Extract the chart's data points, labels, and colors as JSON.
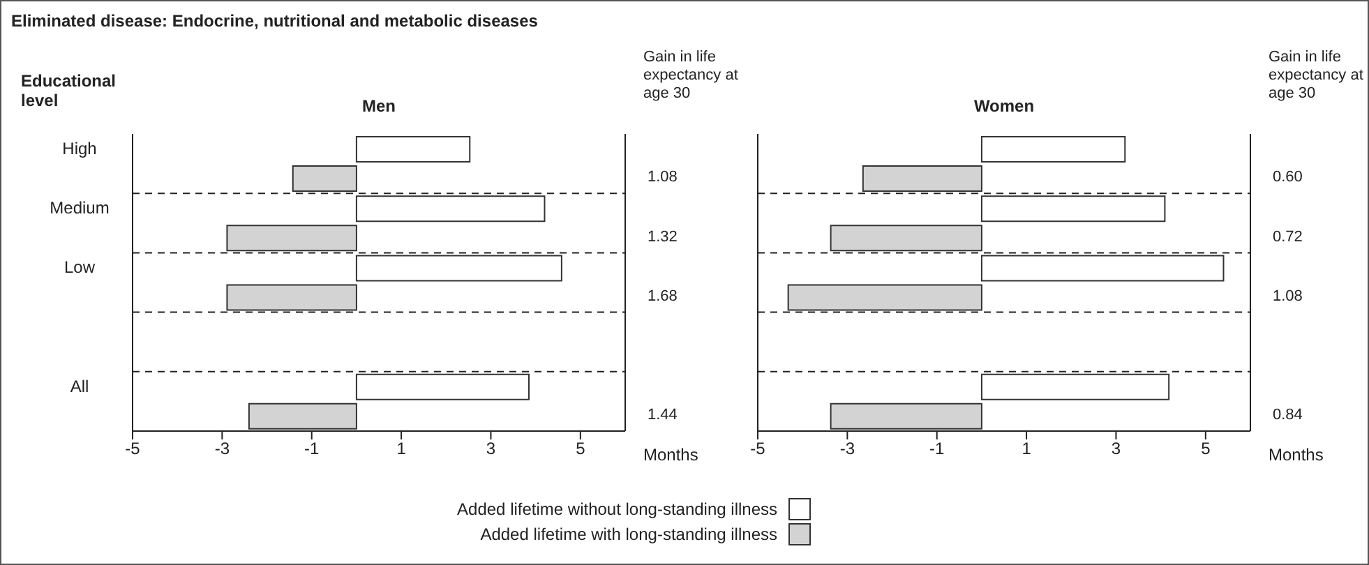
{
  "chart_data": [
    {
      "type": "bar",
      "orientation": "horizontal",
      "title": "Men",
      "xlabel": "Months",
      "ylabel": "Educational level",
      "y2label": "Gain in life expectancy at age 30",
      "annotations": [
        "Eliminated disease: Endocrine, nutritional and metabolic diseases"
      ],
      "categories": [
        "High",
        "Medium",
        "Low",
        null,
        "All"
      ],
      "y2_categories": [
        "1.08",
        "1.32",
        "1.68",
        null,
        "1.44"
      ],
      "series": [
        {
          "name": "Added lifetime without long-standing illness",
          "color": "#ffffff",
          "values": [
            2.53,
            4.2,
            4.58,
            null,
            3.85
          ]
        },
        {
          "name": "Added lifetime with long-standing illness",
          "color": "#d3d3d3",
          "values": [
            -1.42,
            -2.89,
            -2.89,
            null,
            -2.4
          ]
        }
      ],
      "xlim": [
        -5,
        6
      ],
      "xticks": [
        -5,
        -3,
        -1,
        1,
        3,
        5
      ],
      "grid": "y",
      "legend": "bottom"
    },
    {
      "type": "bar",
      "orientation": "horizontal",
      "title": "Women",
      "xlabel": "Months",
      "y2label": "Gain in life expectancy at age 30",
      "categories": [
        null,
        null,
        null,
        null,
        null
      ],
      "y2_categories": [
        "0.60",
        "0.72",
        "1.08",
        null,
        "0.84"
      ],
      "series": [
        {
          "color": "#ffffff",
          "values": [
            3.2,
            4.09,
            5.4,
            null,
            4.18
          ]
        },
        {
          "color": "#d3d3d3",
          "values": [
            -2.65,
            -3.37,
            -4.32,
            null,
            -3.37
          ]
        }
      ],
      "xlim": [
        -5,
        6
      ],
      "xticks": [
        -5,
        -3,
        -1,
        1,
        3,
        5
      ],
      "grid": "y",
      "tick_labels": "x"
    }
  ]
}
